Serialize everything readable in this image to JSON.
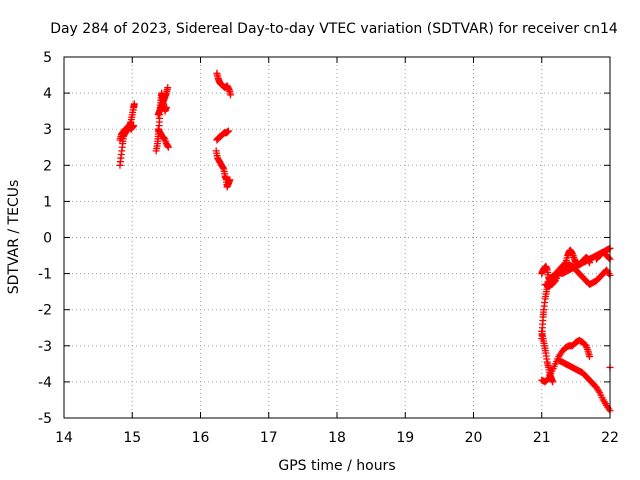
{
  "chart_data": {
    "type": "scatter",
    "title": "Day 284 of 2023, Sidereal Day-to-day VTEC variation (SDTVAR) for receiver cn14",
    "xlabel": "GPS time / hours",
    "ylabel": "SDTVAR / TECUs",
    "xlim": [
      14,
      22
    ],
    "ylim": [
      -5,
      5
    ],
    "xticks": [
      14,
      15,
      16,
      17,
      18,
      19,
      20,
      21,
      22
    ],
    "yticks": [
      -5,
      -4,
      -3,
      -2,
      -1,
      0,
      1,
      2,
      3,
      4,
      5
    ],
    "grid": true,
    "marker": "+",
    "color": "#ff0000",
    "series": [
      {
        "name": "cn14 SDTVAR",
        "traces": [
          [
            [
              14.82,
              2.0
            ],
            [
              14.84,
              2.3
            ],
            [
              14.86,
              2.6
            ],
            [
              14.87,
              2.8
            ],
            [
              14.9,
              2.9
            ],
            [
              14.93,
              3.0
            ],
            [
              14.96,
              3.1
            ],
            [
              14.98,
              3.2
            ],
            [
              15.0,
              3.4
            ],
            [
              15.02,
              3.6
            ],
            [
              15.03,
              3.7
            ]
          ],
          [
            [
              14.82,
              2.7
            ],
            [
              14.84,
              2.85
            ],
            [
              14.86,
              2.9
            ],
            [
              14.88,
              2.95
            ],
            [
              14.9,
              3.0
            ],
            [
              14.93,
              3.05
            ],
            [
              14.96,
              3.1
            ],
            [
              14.98,
              3.0
            ],
            [
              15.0,
              3.05
            ],
            [
              15.02,
              3.1
            ]
          ],
          [
            [
              15.35,
              2.4
            ],
            [
              15.37,
              2.6
            ],
            [
              15.38,
              2.8
            ],
            [
              15.39,
              3.0
            ],
            [
              15.4,
              3.3
            ],
            [
              15.41,
              3.6
            ],
            [
              15.42,
              3.8
            ],
            [
              15.43,
              4.0
            ],
            [
              15.44,
              3.9
            ],
            [
              15.46,
              3.7
            ],
            [
              15.48,
              3.5
            ],
            [
              15.5,
              3.6
            ]
          ],
          [
            [
              15.38,
              3.4
            ],
            [
              15.4,
              3.5
            ],
            [
              15.42,
              3.6
            ],
            [
              15.44,
              3.7
            ],
            [
              15.46,
              3.8
            ],
            [
              15.48,
              3.9
            ],
            [
              15.5,
              4.0
            ],
            [
              15.52,
              4.15
            ]
          ],
          [
            [
              15.38,
              3.0
            ],
            [
              15.41,
              2.9
            ],
            [
              15.44,
              2.8
            ],
            [
              15.47,
              2.75
            ],
            [
              15.5,
              2.6
            ],
            [
              15.53,
              2.5
            ]
          ],
          [
            [
              16.24,
              4.55
            ],
            [
              16.26,
              4.4
            ],
            [
              16.28,
              4.3
            ],
            [
              16.3,
              4.25
            ],
            [
              16.33,
              4.2
            ],
            [
              16.36,
              4.15
            ],
            [
              16.39,
              4.2
            ],
            [
              16.42,
              4.1
            ],
            [
              16.44,
              3.95
            ]
          ],
          [
            [
              16.24,
              2.7
            ],
            [
              16.26,
              2.75
            ],
            [
              16.29,
              2.8
            ],
            [
              16.32,
              2.85
            ],
            [
              16.35,
              2.9
            ],
            [
              16.38,
              2.9
            ],
            [
              16.41,
              2.95
            ]
          ],
          [
            [
              16.23,
              2.4
            ],
            [
              16.25,
              2.2
            ],
            [
              16.28,
              2.1
            ],
            [
              16.31,
              2.0
            ],
            [
              16.34,
              1.9
            ],
            [
              16.36,
              1.7
            ],
            [
              16.38,
              1.6
            ],
            [
              16.39,
              1.4
            ],
            [
              16.41,
              1.5
            ],
            [
              16.43,
              1.6
            ]
          ],
          [
            [
              21.0,
              -2.8
            ],
            [
              21.01,
              -2.5
            ],
            [
              21.02,
              -2.2
            ],
            [
              21.03,
              -2.0
            ],
            [
              21.05,
              -1.7
            ],
            [
              21.07,
              -1.5
            ],
            [
              21.09,
              -1.3
            ],
            [
              21.12,
              -1.2
            ],
            [
              21.15,
              -1.1
            ],
            [
              21.2,
              -1.0
            ],
            [
              21.25,
              -0.95
            ],
            [
              21.3,
              -1.0
            ],
            [
              21.35,
              -0.95
            ],
            [
              21.4,
              -0.9
            ],
            [
              21.45,
              -0.85
            ],
            [
              21.5,
              -0.8
            ],
            [
              21.55,
              -0.75
            ],
            [
              21.6,
              -0.7
            ],
            [
              21.65,
              -0.65
            ],
            [
              21.7,
              -0.6
            ],
            [
              21.75,
              -0.55
            ],
            [
              21.8,
              -0.5
            ],
            [
              21.85,
              -0.45
            ],
            [
              21.9,
              -0.4
            ],
            [
              21.95,
              -0.35
            ],
            [
              22.0,
              -0.3
            ]
          ],
          [
            [
              21.0,
              -1.0
            ],
            [
              21.02,
              -0.9
            ],
            [
              21.04,
              -0.85
            ],
            [
              21.06,
              -0.8
            ],
            [
              21.08,
              -0.9
            ],
            [
              21.1,
              -1.1
            ],
            [
              21.12,
              -1.2
            ],
            [
              21.15,
              -1.3
            ],
            [
              21.18,
              -1.2
            ],
            [
              21.2,
              -1.1
            ],
            [
              21.25,
              -0.9
            ],
            [
              21.3,
              -0.8
            ],
            [
              21.35,
              -0.7
            ],
            [
              21.38,
              -0.5
            ],
            [
              21.4,
              -0.4
            ],
            [
              21.42,
              -0.35
            ],
            [
              21.45,
              -0.45
            ],
            [
              21.48,
              -0.6
            ],
            [
              21.5,
              -0.7
            ],
            [
              21.55,
              -0.75
            ],
            [
              21.6,
              -0.65
            ],
            [
              21.65,
              -0.55
            ],
            [
              21.68,
              -0.6
            ],
            [
              21.7,
              -0.7
            ]
          ],
          [
            [
              21.05,
              -1.3
            ],
            [
              21.1,
              -1.35
            ],
            [
              21.15,
              -1.3
            ],
            [
              21.2,
              -1.2
            ],
            [
              21.25,
              -1.0
            ],
            [
              21.3,
              -0.9
            ],
            [
              21.35,
              -0.8
            ],
            [
              21.4,
              -0.75
            ],
            [
              21.45,
              -0.8
            ],
            [
              21.5,
              -0.9
            ],
            [
              21.55,
              -1.0
            ],
            [
              21.6,
              -1.1
            ],
            [
              21.65,
              -1.2
            ],
            [
              21.7,
              -1.3
            ],
            [
              21.75,
              -1.25
            ],
            [
              21.8,
              -1.2
            ],
            [
              21.85,
              -1.1
            ],
            [
              21.9,
              -1.0
            ],
            [
              21.95,
              -0.9
            ],
            [
              22.0,
              -1.05
            ]
          ],
          [
            [
              21.8,
              -0.6
            ],
            [
              21.85,
              -0.5
            ],
            [
              21.9,
              -0.4
            ],
            [
              21.95,
              -0.5
            ],
            [
              22.0,
              -0.6
            ]
          ],
          [
            [
              21.0,
              -3.95
            ],
            [
              21.05,
              -4.0
            ],
            [
              21.1,
              -3.9
            ],
            [
              21.15,
              -3.7
            ],
            [
              21.2,
              -3.5
            ],
            [
              21.25,
              -3.3
            ],
            [
              21.3,
              -3.15
            ],
            [
              21.35,
              -3.05
            ],
            [
              21.4,
              -3.0
            ],
            [
              21.45,
              -3.0
            ],
            [
              21.5,
              -2.9
            ],
            [
              21.55,
              -2.85
            ],
            [
              21.6,
              -2.9
            ],
            [
              21.65,
              -3.0
            ],
            [
              21.68,
              -3.15
            ],
            [
              21.7,
              -3.3
            ]
          ],
          [
            [
              21.0,
              -2.6
            ],
            [
              21.02,
              -2.8
            ],
            [
              21.04,
              -3.0
            ],
            [
              21.06,
              -3.2
            ],
            [
              21.08,
              -3.45
            ],
            [
              21.1,
              -3.6
            ],
            [
              21.12,
              -3.8
            ],
            [
              21.14,
              -3.9
            ],
            [
              21.16,
              -4.0
            ]
          ],
          [
            [
              21.25,
              -3.4
            ],
            [
              21.3,
              -3.45
            ],
            [
              21.35,
              -3.5
            ],
            [
              21.4,
              -3.55
            ],
            [
              21.45,
              -3.6
            ],
            [
              21.5,
              -3.65
            ],
            [
              21.55,
              -3.7
            ],
            [
              21.6,
              -3.75
            ],
            [
              21.65,
              -3.85
            ],
            [
              21.7,
              -3.95
            ],
            [
              21.75,
              -4.05
            ],
            [
              21.8,
              -4.15
            ],
            [
              21.85,
              -4.3
            ],
            [
              21.9,
              -4.5
            ],
            [
              21.95,
              -4.65
            ],
            [
              22.0,
              -4.8
            ]
          ],
          [
            [
              22.0,
              -3.6
            ]
          ]
        ]
      }
    ]
  }
}
